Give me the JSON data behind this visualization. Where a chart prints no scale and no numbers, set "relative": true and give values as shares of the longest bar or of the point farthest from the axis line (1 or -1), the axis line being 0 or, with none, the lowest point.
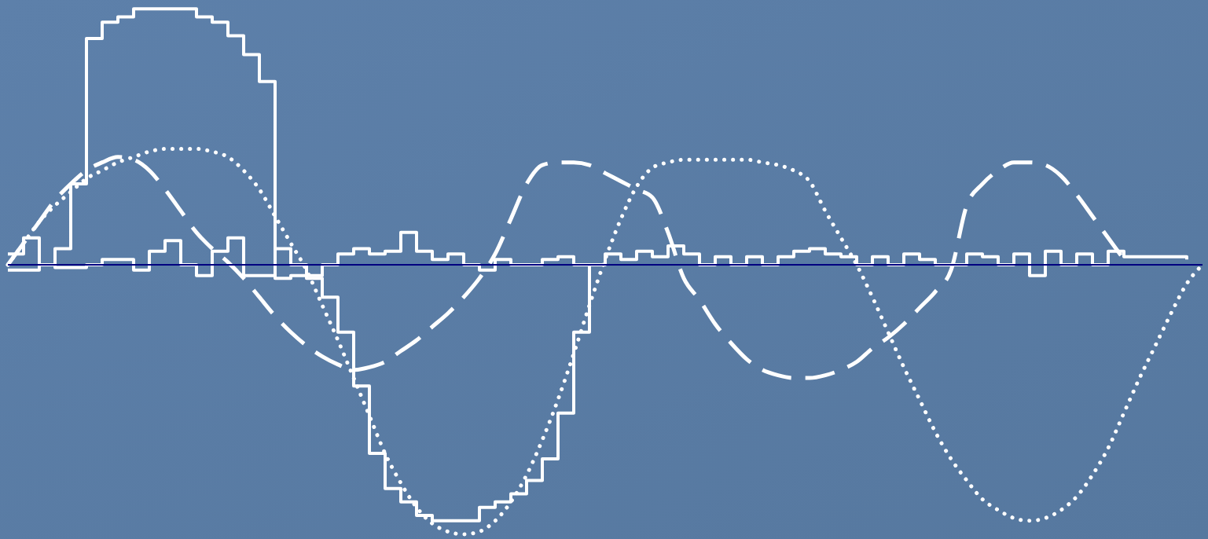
{
  "chart_data": {
    "type": "line",
    "relative": true,
    "marker": "none",
    "ref_lines": [
      {
        "axis": "y",
        "value": 0,
        "color": "#000080"
      }
    ],
    "categories": [
      null,
      null,
      null,
      null,
      null,
      null,
      null,
      null,
      null,
      null,
      null,
      null,
      null,
      null,
      null,
      null,
      null,
      null,
      null,
      null,
      null,
      null,
      null,
      null,
      null,
      null,
      null,
      null,
      null,
      null,
      null,
      null,
      null,
      null,
      null,
      null,
      null,
      null,
      null,
      null,
      null,
      null,
      null,
      null,
      null,
      null,
      null,
      null,
      null,
      null,
      null,
      null,
      null,
      null,
      null,
      null,
      null,
      null,
      null,
      null,
      null,
      null,
      null,
      null,
      null,
      null,
      null,
      null,
      null,
      null,
      null,
      null,
      null,
      null,
      null,
      null,
      null
    ],
    "series": [
      {
        "line_style": "dotted",
        "color": "#ffffff",
        "values": [
          0.0,
          0.08,
          0.16,
          0.22,
          0.27,
          0.32,
          0.35,
          0.38,
          0.4,
          0.42,
          0.43,
          0.43,
          0.43,
          0.42,
          0.4,
          0.35,
          0.28,
          0.18,
          0.08,
          -0.02,
          -0.15,
          -0.28,
          -0.42,
          -0.56,
          -0.7,
          -0.81,
          -0.9,
          -0.96,
          -0.99,
          -1.0,
          -0.99,
          -0.95,
          -0.88,
          -0.78,
          -0.65,
          -0.5,
          -0.33,
          -0.15,
          0.02,
          0.17,
          0.29,
          0.36,
          0.38,
          0.39,
          0.39,
          0.39,
          0.39,
          0.39,
          0.38,
          0.37,
          0.35,
          0.31,
          0.2,
          0.1,
          0.0,
          -0.12,
          -0.25,
          -0.38,
          -0.5,
          -0.62,
          -0.72,
          -0.8,
          -0.87,
          -0.91,
          -0.94,
          -0.95,
          -0.94,
          -0.91,
          -0.86,
          -0.78,
          -0.68,
          -0.55,
          -0.42,
          -0.3,
          -0.18,
          -0.07,
          0.0
        ]
      },
      {
        "line_style": "dashed",
        "color": "#ffffff",
        "values": [
          0.0,
          0.08,
          0.16,
          0.24,
          0.3,
          0.35,
          0.38,
          0.4,
          0.39,
          0.35,
          0.28,
          0.2,
          0.12,
          0.06,
          0.01,
          -0.05,
          -0.12,
          -0.19,
          -0.25,
          -0.3,
          -0.34,
          -0.37,
          -0.39,
          -0.38,
          -0.36,
          -0.32,
          -0.28,
          -0.23,
          -0.18,
          -0.12,
          -0.05,
          0.04,
          0.17,
          0.3,
          0.37,
          0.38,
          0.38,
          0.37,
          0.34,
          0.31,
          0.28,
          0.25,
          0.12,
          -0.05,
          -0.13,
          -0.22,
          -0.29,
          -0.35,
          -0.39,
          -0.41,
          -0.42,
          -0.42,
          -0.41,
          -0.39,
          -0.36,
          -0.31,
          -0.27,
          -0.22,
          -0.16,
          -0.1,
          -0.02,
          0.22,
          0.3,
          0.35,
          0.38,
          0.38,
          0.37,
          0.33,
          0.26,
          0.18,
          0.1,
          0.02,
          null,
          null,
          null,
          null,
          null
        ]
      },
      {
        "type": "step",
        "line_style": "solid",
        "color": "#ffffff",
        "values": [
          -0.02,
          -0.02,
          0.0,
          0.06,
          0.3,
          0.84,
          0.9,
          0.92,
          0.95,
          0.95,
          0.95,
          0.95,
          0.92,
          0.9,
          0.85,
          0.78,
          0.68,
          -0.05,
          -0.04,
          -0.05,
          -0.12,
          -0.25,
          -0.45,
          -0.7,
          -0.83,
          -0.88,
          -0.93,
          -0.95,
          -0.95,
          -0.95,
          -0.9,
          -0.88,
          -0.85,
          -0.8,
          -0.72,
          -0.55,
          -0.25,
          0.0,
          null,
          null,
          null,
          null,
          null,
          null,
          null,
          null,
          null,
          null,
          null,
          null,
          null,
          null,
          null,
          null,
          null,
          null,
          null,
          null,
          null,
          null,
          null,
          null,
          null,
          null,
          null,
          null,
          null,
          null,
          null,
          null,
          null,
          null,
          null,
          null,
          null,
          null,
          null
        ]
      },
      {
        "type": "step",
        "line_style": "solid",
        "color": "#ffffff",
        "values": [
          0.04,
          0.1,
          0.0,
          -0.01,
          -0.01,
          0.0,
          0.02,
          0.02,
          -0.02,
          0.05,
          0.09,
          0.0,
          -0.04,
          0.05,
          0.1,
          -0.04,
          -0.04,
          0.06,
          0.0,
          -0.04,
          0.0,
          0.04,
          0.06,
          0.04,
          0.05,
          0.12,
          0.05,
          0.02,
          0.04,
          0.0,
          -0.02,
          0.02,
          0.0,
          0.0,
          0.02,
          0.03,
          0.0,
          0.0,
          0.04,
          0.02,
          0.05,
          0.03,
          0.07,
          0.04,
          0.0,
          0.03,
          0.0,
          0.03,
          0.0,
          0.03,
          0.05,
          0.06,
          0.04,
          0.03,
          0.0,
          0.03,
          0.0,
          0.04,
          0.02,
          0.0,
          0.0,
          0.04,
          0.03,
          0.0,
          0.04,
          -0.04,
          0.05,
          0.0,
          0.04,
          0.0,
          0.05,
          0.03,
          0.03,
          0.03,
          0.03,
          0.02,
          null
        ]
      }
    ]
  }
}
